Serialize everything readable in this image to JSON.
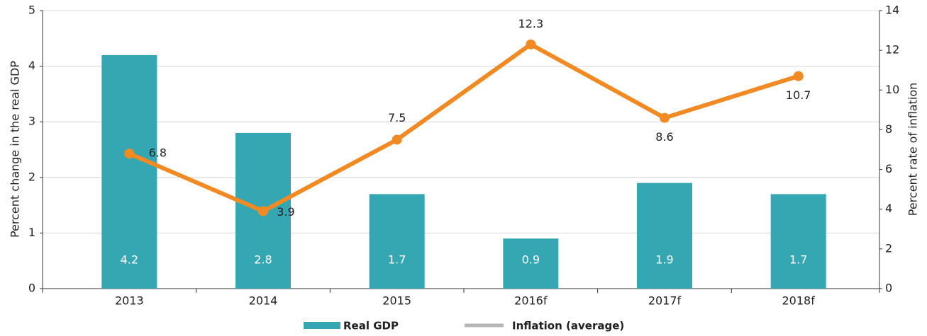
{
  "chart_data": {
    "type": "bar_line",
    "categories": [
      "2013",
      "2014",
      "2015",
      "2016f",
      "2017f",
      "2018f"
    ],
    "ylabel": "Percent change in the real GDP",
    "y2label": "Percent rate of inflation",
    "ylim": [
      0,
      5
    ],
    "yticks": [
      0,
      1,
      2,
      3,
      4,
      5
    ],
    "y2lim": [
      0,
      14
    ],
    "y2ticks": [
      0,
      2,
      4,
      6,
      8,
      10,
      12,
      14
    ],
    "grid": true,
    "series": [
      {
        "name": "Real GDP",
        "type": "bar",
        "color": "#35a7b2",
        "values": [
          4.2,
          2.8,
          1.7,
          0.9,
          1.9,
          1.7
        ]
      },
      {
        "name": "Inflation (average)",
        "type": "line",
        "axis": "y2",
        "color": "#f28a24",
        "values": [
          6.8,
          3.9,
          7.5,
          12.3,
          8.6,
          10.7
        ]
      }
    ]
  }
}
